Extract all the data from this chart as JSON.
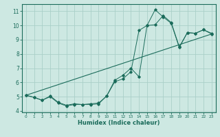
{
  "xlabel": "Humidex (Indice chaleur)",
  "xlim": [
    -0.5,
    23.5
  ],
  "ylim": [
    3.9,
    11.5
  ],
  "yticks": [
    4,
    5,
    6,
    7,
    8,
    9,
    10,
    11
  ],
  "xticks": [
    0,
    1,
    2,
    3,
    4,
    5,
    6,
    7,
    8,
    9,
    10,
    11,
    12,
    13,
    14,
    15,
    16,
    17,
    18,
    19,
    20,
    21,
    22,
    23
  ],
  "bg_color": "#cde8e2",
  "grid_color": "#aacfc8",
  "line_color": "#1a6b5a",
  "line1_x": [
    0,
    1,
    2,
    3,
    4,
    5,
    6,
    7,
    8,
    9,
    10,
    11,
    12,
    13,
    14,
    15,
    16,
    17,
    18,
    19,
    20,
    21,
    22,
    23
  ],
  "line1_y": [
    5.1,
    4.95,
    4.75,
    5.0,
    4.55,
    4.35,
    4.45,
    4.45,
    4.45,
    4.5,
    5.05,
    6.15,
    6.5,
    7.0,
    6.4,
    10.0,
    10.05,
    10.7,
    10.2,
    8.5,
    9.5,
    9.45,
    9.7,
    9.4
  ],
  "line2_x": [
    0,
    1,
    2,
    3,
    4,
    5,
    6,
    7,
    8,
    9,
    10,
    11,
    12,
    13,
    14,
    15,
    16,
    17,
    18,
    19,
    20,
    21,
    22,
    23
  ],
  "line2_y": [
    5.1,
    4.95,
    4.75,
    5.05,
    4.6,
    4.4,
    4.5,
    4.45,
    4.5,
    4.55,
    5.05,
    6.05,
    6.25,
    6.75,
    9.65,
    10.0,
    11.1,
    10.6,
    10.15,
    8.45,
    9.5,
    9.45,
    9.7,
    9.45
  ],
  "line3_x": [
    0,
    23
  ],
  "line3_y": [
    5.1,
    9.4
  ]
}
